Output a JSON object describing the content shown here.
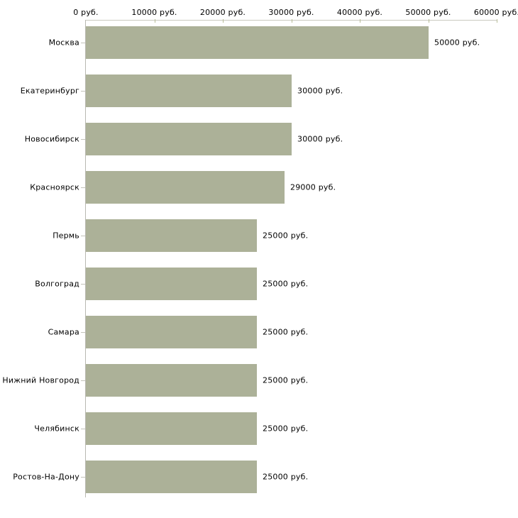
{
  "chart_data": {
    "type": "bar",
    "orientation": "horizontal",
    "title": "",
    "xlabel": "",
    "ylabel": "",
    "categories": [
      "Москва",
      "Екатеринбург",
      "Новосибирск",
      "Красноярск",
      "Пермь",
      "Волгоград",
      "Самара",
      "Нижний Новгород",
      "Челябинск",
      "Ростов-На-Дону"
    ],
    "values": [
      50000,
      30000,
      30000,
      29000,
      25000,
      25000,
      25000,
      25000,
      25000,
      25000
    ],
    "value_labels": [
      "50000 руб.",
      "30000 руб.",
      "30000 руб.",
      "29000 руб.",
      "25000 руб.",
      "25000 руб.",
      "25000 руб.",
      "25000 руб.",
      "25000 руб.",
      "25000 руб."
    ],
    "x_ticks": [
      {
        "value": 0,
        "label": "0 руб."
      },
      {
        "value": 10000,
        "label": "10000 руб."
      },
      {
        "value": 20000,
        "label": "20000 руб."
      },
      {
        "value": 30000,
        "label": "30000 руб."
      },
      {
        "value": 40000,
        "label": "40000 руб."
      },
      {
        "value": 50000,
        "label": "50000 руб."
      },
      {
        "value": 60000,
        "label": "60000 руб."
      }
    ],
    "xlim": [
      0,
      60000
    ],
    "grid": false,
    "legend": false,
    "colors": {
      "bar": "#acb198",
      "axis_line": "#c9c9c0",
      "axis_tick": "#b7bc97",
      "category_tick": "#c3c3ba",
      "text": "#000000",
      "background": "#ffffff"
    }
  }
}
